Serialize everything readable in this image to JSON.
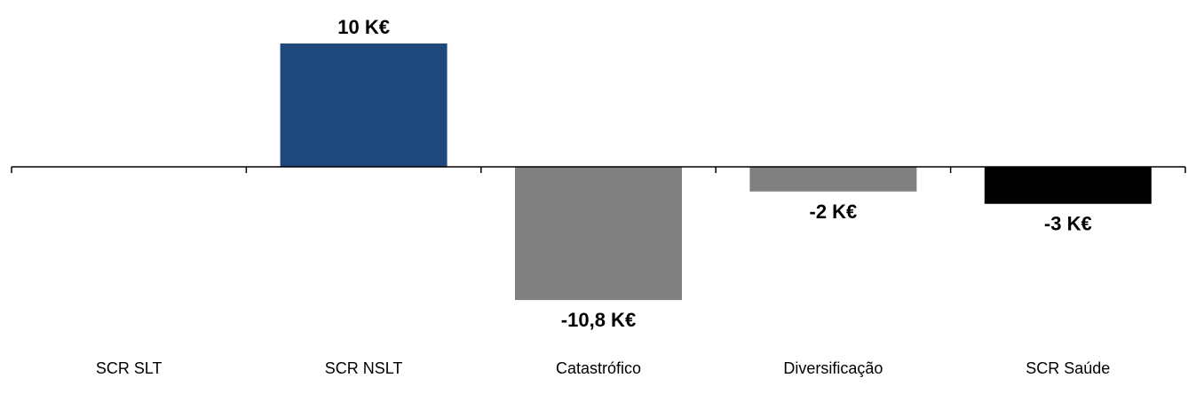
{
  "chart_data": {
    "type": "bar",
    "title": "",
    "xlabel": "",
    "ylabel": "",
    "unit": "K€",
    "categories": [
      "SCR SLT",
      "SCR NSLT",
      "Catastrófico",
      "Diversificação",
      "SCR Saúde"
    ],
    "values": [
      0,
      10,
      -10.8,
      -2,
      -3
    ],
    "data_labels": [
      "",
      "10 K€",
      "-10,8 K€",
      "-2 K€",
      "-3 K€"
    ],
    "colors": [
      "#1f497d",
      "#1f497d",
      "#808080",
      "#808080",
      "#000000"
    ],
    "ylim": [
      -13,
      13
    ],
    "grid": false,
    "legend": "none"
  }
}
